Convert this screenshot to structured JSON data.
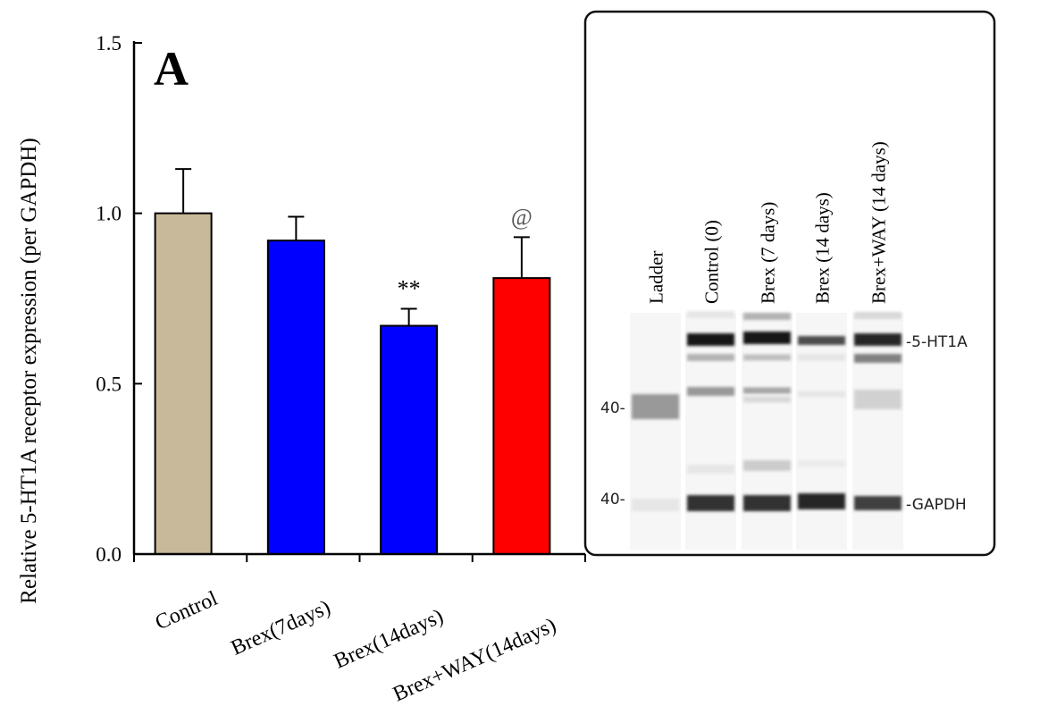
{
  "chart_data": {
    "type": "bar",
    "panel_label": "A",
    "ylabel": "Relative 5-HT1A receptor expression (per GAPDH)",
    "xlabel": "",
    "ylim": [
      0,
      1.5
    ],
    "yticks": [
      "0.0",
      "0.5",
      "1.0",
      "1.5"
    ],
    "ytick_values": [
      0,
      0.5,
      1.0,
      1.5
    ],
    "grid": false,
    "categories": [
      "Control",
      "Brex(7days)",
      "Brex(14days)",
      "Brex+WAY(14days)"
    ],
    "values": [
      1.0,
      0.92,
      0.67,
      0.81
    ],
    "error_upper": [
      0.13,
      0.07,
      0.05,
      0.12
    ],
    "colors": [
      "#c8b99a",
      "#0000ff",
      "#0000ff",
      "#ff0000"
    ],
    "annotations": [
      "",
      "",
      "**",
      "@"
    ]
  },
  "blot": {
    "lanes": [
      "Ladder",
      "Control (0)",
      "Brex (7 days)",
      "Brex (14 days)",
      "Brex+WAY (14 days)"
    ],
    "markers": [
      "40",
      "40"
    ],
    "band_labels": [
      "5-HT1A",
      "GAPDH"
    ]
  }
}
